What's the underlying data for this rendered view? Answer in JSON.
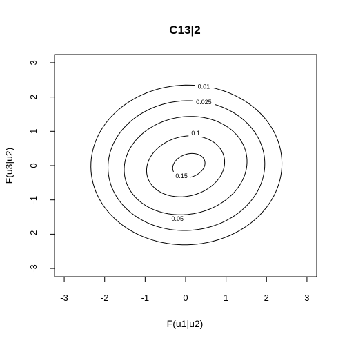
{
  "chart_data": {
    "type": "contour",
    "title": "C13|2",
    "xlabel": "F(u1|u2)",
    "ylabel": "F(u3|u2)",
    "xlim": [
      -3,
      3
    ],
    "ylim": [
      -3,
      3
    ],
    "xticks": [
      "-3",
      "-2",
      "-1",
      "0",
      "1",
      "2",
      "3"
    ],
    "yticks": [
      "-3",
      "-2",
      "-1",
      "0",
      "1",
      "2",
      "3"
    ],
    "grid": false,
    "contour_type": "bivariate density, positive dependence",
    "levels": [
      {
        "level": 0.01,
        "label": "0.01",
        "label_at": [
          0.45,
          2.3
        ]
      },
      {
        "level": 0.025,
        "label": "0.025",
        "label_at": [
          0.45,
          1.85
        ]
      },
      {
        "level": 0.05,
        "label": "0.05",
        "label_at": [
          -0.2,
          -1.55
        ]
      },
      {
        "level": 0.1,
        "label": "0.1",
        "label_at": [
          0.25,
          0.95
        ]
      },
      {
        "level": 0.15,
        "label": "0.15",
        "label_at": [
          -0.1,
          -0.3
        ]
      }
    ]
  }
}
